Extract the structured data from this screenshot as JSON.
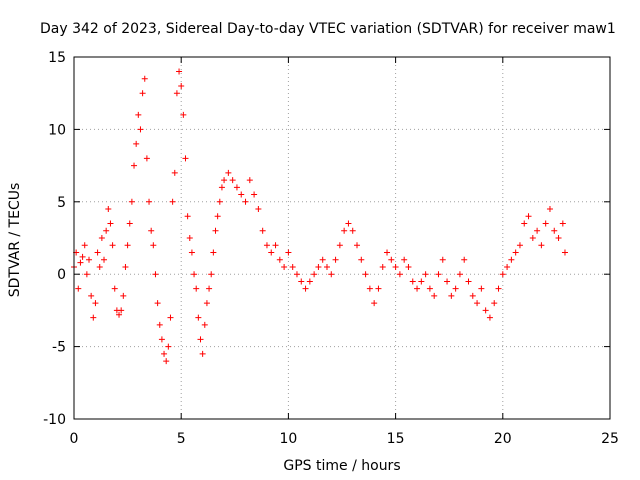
{
  "chart_data": {
    "type": "scatter",
    "title": "Day 342 of 2023, Sidereal Day-to-day VTEC variation (SDTVAR) for receiver maw1",
    "xlabel": "GPS time / hours",
    "ylabel": "SDTVAR / TECUs",
    "xlim": [
      0,
      25
    ],
    "ylim": [
      -10,
      15
    ],
    "xticks": [
      0,
      5,
      10,
      15,
      20,
      25
    ],
    "yticks": [
      -10,
      -5,
      0,
      5,
      10,
      15
    ],
    "xtick_labels": [
      "0",
      "5",
      "10",
      "15",
      "20",
      "25"
    ],
    "ytick_labels": [
      "-10",
      "-5",
      "0",
      "5",
      "10",
      "15"
    ],
    "grid": true,
    "marker": "+",
    "series_color": "#ff0000",
    "series": [
      {
        "name": "SDTVAR",
        "x": [
          0.0,
          0.1,
          0.2,
          0.3,
          0.4,
          0.5,
          0.6,
          0.7,
          0.8,
          0.9,
          1.0,
          1.1,
          1.2,
          1.3,
          1.4,
          1.5,
          1.6,
          1.7,
          1.8,
          1.9,
          2.0,
          2.1,
          2.2,
          2.3,
          2.4,
          2.5,
          2.6,
          2.7,
          2.8,
          2.9,
          3.0,
          3.1,
          3.2,
          3.3,
          3.4,
          3.5,
          3.6,
          3.7,
          3.8,
          3.9,
          4.0,
          4.1,
          4.2,
          4.3,
          4.4,
          4.5,
          4.6,
          4.7,
          4.8,
          4.9,
          5.0,
          5.1,
          5.2,
          5.3,
          5.4,
          5.5,
          5.6,
          5.7,
          5.8,
          5.9,
          6.0,
          6.1,
          6.2,
          6.3,
          6.4,
          6.5,
          6.6,
          6.7,
          6.8,
          6.9,
          7.0,
          7.2,
          7.4,
          7.6,
          7.8,
          8.0,
          8.2,
          8.4,
          8.6,
          8.8,
          9.0,
          9.2,
          9.4,
          9.6,
          9.8,
          10.0,
          10.2,
          10.4,
          10.6,
          10.8,
          11.0,
          11.2,
          11.4,
          11.6,
          11.8,
          12.0,
          12.2,
          12.4,
          12.6,
          12.8,
          13.0,
          13.2,
          13.4,
          13.6,
          13.8,
          14.0,
          14.2,
          14.4,
          14.6,
          14.8,
          15.0,
          15.2,
          15.4,
          15.6,
          15.8,
          16.0,
          16.2,
          16.4,
          16.6,
          16.8,
          17.0,
          17.2,
          17.4,
          17.6,
          17.8,
          18.0,
          18.2,
          18.4,
          18.6,
          18.8,
          19.0,
          19.2,
          19.4,
          19.6,
          19.8,
          20.0,
          20.2,
          20.4,
          20.6,
          20.8,
          21.0,
          21.2,
          21.4,
          21.6,
          21.8,
          22.0,
          22.2,
          22.4,
          22.6,
          22.8,
          22.9
        ],
        "y": [
          0.5,
          1.5,
          -1.0,
          0.8,
          1.2,
          2.0,
          0.0,
          1.0,
          -1.5,
          -3.0,
          -2.0,
          1.5,
          0.5,
          2.5,
          1.0,
          3.0,
          4.5,
          3.5,
          2.0,
          -1.0,
          -2.5,
          -2.8,
          -2.5,
          -1.5,
          0.5,
          2.0,
          3.5,
          5.0,
          7.5,
          9.0,
          11.0,
          10.0,
          12.5,
          13.5,
          8.0,
          5.0,
          3.0,
          2.0,
          0.0,
          -2.0,
          -3.5,
          -4.5,
          -5.5,
          -6.0,
          -5.0,
          -3.0,
          5.0,
          7.0,
          12.5,
          14.0,
          13.0,
          11.0,
          8.0,
          4.0,
          2.5,
          1.5,
          0.0,
          -1.0,
          -3.0,
          -4.5,
          -5.5,
          -3.5,
          -2.0,
          -1.0,
          0.0,
          1.5,
          3.0,
          4.0,
          5.0,
          6.0,
          6.5,
          7.0,
          6.5,
          6.0,
          5.5,
          5.0,
          6.5,
          5.5,
          4.5,
          3.0,
          2.0,
          1.5,
          2.0,
          1.0,
          0.5,
          1.5,
          0.5,
          0.0,
          -0.5,
          -1.0,
          -0.5,
          0.0,
          0.5,
          1.0,
          0.5,
          0.0,
          1.0,
          2.0,
          3.0,
          3.5,
          3.0,
          2.0,
          1.0,
          0.0,
          -1.0,
          -2.0,
          -1.0,
          0.5,
          1.5,
          1.0,
          0.5,
          0.0,
          1.0,
          0.5,
          -0.5,
          -1.0,
          -0.5,
          0.0,
          -1.0,
          -1.5,
          0.0,
          1.0,
          -0.5,
          -1.5,
          -1.0,
          0.0,
          1.0,
          -0.5,
          -1.5,
          -2.0,
          -1.0,
          -2.5,
          -3.0,
          -2.0,
          -1.0,
          0.0,
          0.5,
          1.0,
          1.5,
          2.0,
          3.5,
          4.0,
          2.5,
          3.0,
          2.0,
          3.5,
          4.5,
          3.0,
          2.5,
          3.5,
          1.5
        ]
      }
    ]
  }
}
